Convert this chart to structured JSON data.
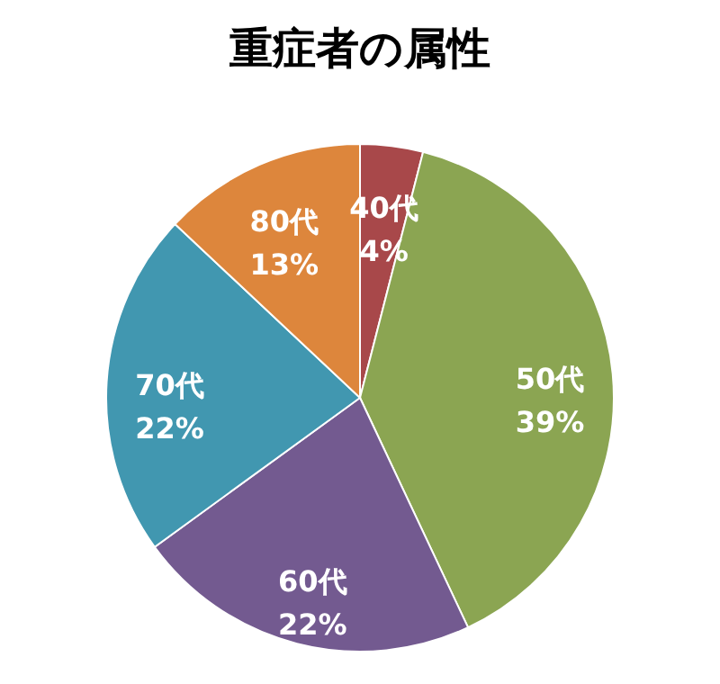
{
  "chart_data": {
    "type": "pie",
    "title": "重症者の属性",
    "categories": [
      "40代",
      "50代",
      "60代",
      "70代",
      "80代"
    ],
    "values": [
      4,
      39,
      22,
      22,
      13
    ],
    "value_labels": [
      "4%",
      "39%",
      "22%",
      "22%",
      "13%"
    ],
    "colors": [
      "#a8484a",
      "#8ba552",
      "#735a90",
      "#4197b0",
      "#dd863c"
    ]
  }
}
